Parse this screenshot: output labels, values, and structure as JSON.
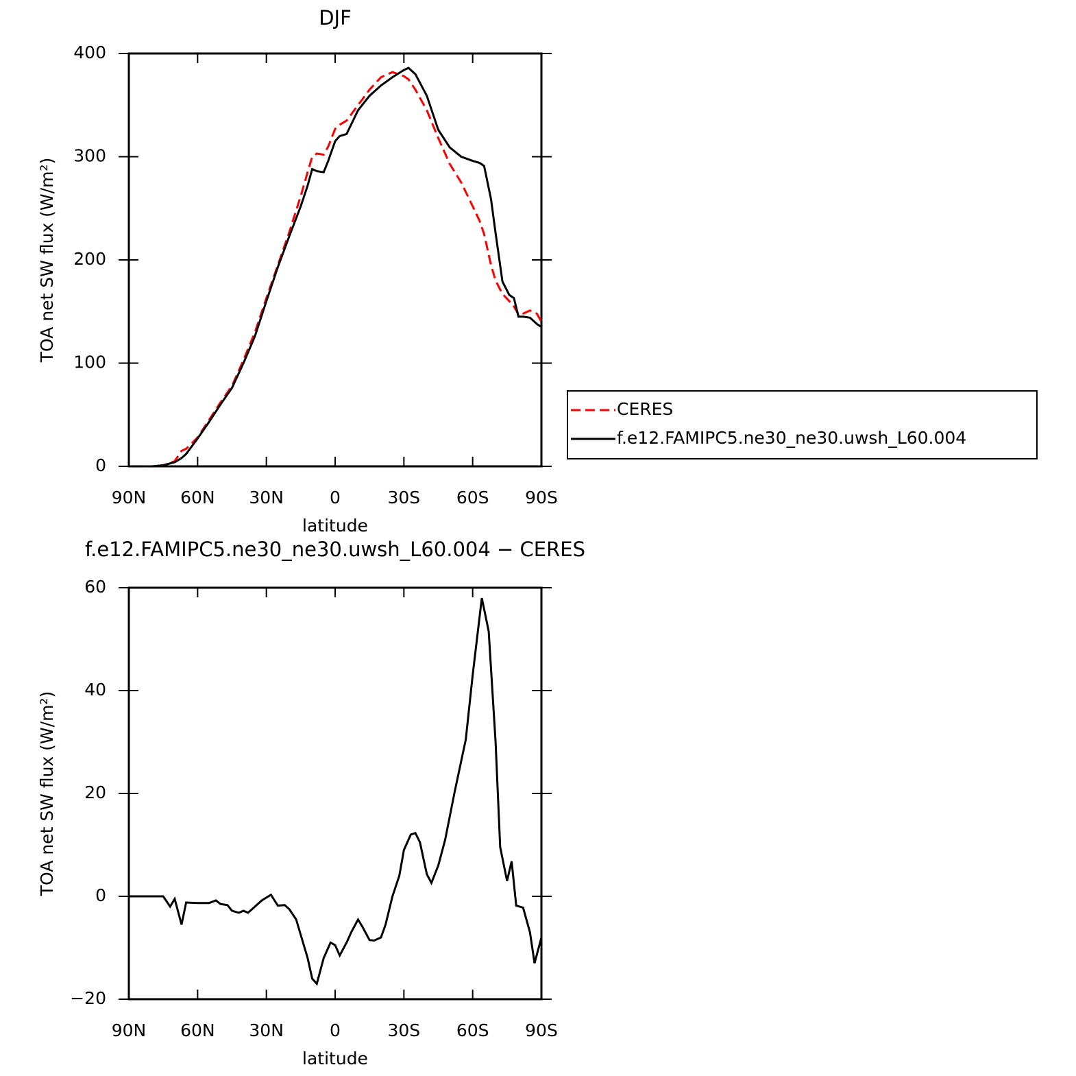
{
  "chart_data": [
    {
      "type": "line",
      "title": "DJF",
      "xlabel": "latitude",
      "ylabel": "TOA net SW flux (W/m²)",
      "x": [
        90,
        80,
        75,
        70,
        67,
        65,
        60,
        55,
        50,
        45,
        40,
        35,
        30,
        25,
        20,
        15,
        12,
        10,
        8,
        5,
        3,
        0,
        -2,
        -5,
        -10,
        -15,
        -20,
        -25,
        -30,
        -32,
        -35,
        -40,
        -45,
        -50,
        -55,
        -60,
        -63,
        -65,
        -68,
        -70,
        -73,
        -76,
        -78,
        -80,
        -82,
        -85,
        -88,
        -90
      ],
      "series": [
        {
          "name": "CERES",
          "color": "#ff0000",
          "line_style": "dashed",
          "values": [
            0,
            0,
            1,
            5,
            15,
            17,
            28,
            45,
            62,
            78,
            103,
            130,
            163,
            195,
            227,
            262,
            285,
            300,
            303,
            302,
            310,
            327,
            331,
            335,
            350,
            365,
            377,
            382,
            378,
            375,
            365,
            345,
            318,
            293,
            275,
            252,
            238,
            225,
            195,
            180,
            167,
            160,
            155,
            147,
            148,
            151,
            148,
            140
          ]
        },
        {
          "name": "f.e12.FAMIPC5.ne30_ne30.uwsh_L60.004",
          "color": "#000000",
          "line_style": "solid",
          "values": [
            0,
            0,
            1,
            4,
            8,
            12,
            27,
            43,
            60,
            76,
            100,
            126,
            160,
            193,
            223,
            252,
            272,
            288,
            286,
            285,
            296,
            315,
            320,
            322,
            345,
            359,
            369,
            377,
            384,
            386,
            380,
            359,
            326,
            309,
            300,
            296,
            294,
            291,
            259,
            226,
            179,
            166,
            163,
            145,
            145,
            144,
            138,
            135
          ]
        }
      ],
      "xlim": [
        90,
        -90
      ],
      "xticks": [
        {
          "value": 90,
          "label": "90N"
        },
        {
          "value": 60,
          "label": "60N"
        },
        {
          "value": 30,
          "label": "30N"
        },
        0,
        {
          "value": -30,
          "label": "30S"
        },
        {
          "value": -60,
          "label": "60S"
        },
        {
          "value": -90,
          "label": "90S"
        }
      ],
      "ylim": [
        0,
        400
      ],
      "yticks": [
        0,
        100,
        200,
        300,
        400
      ],
      "legend": "right"
    },
    {
      "type": "line",
      "title": "f.e12.FAMIPC5.ne30_ne30.uwsh_L60.004 − CERES",
      "xlabel": "latitude",
      "ylabel": "TOA net SW flux (W/m²)",
      "x": [
        90,
        80,
        75,
        72,
        70,
        67,
        65,
        60,
        55,
        52,
        50,
        47,
        45,
        42,
        40,
        38,
        35,
        32,
        28,
        25,
        22,
        20,
        17,
        15,
        12,
        10,
        8,
        5,
        2,
        0,
        -2,
        -5,
        -7,
        -10,
        -12,
        -15,
        -17,
        -20,
        -22,
        -25,
        -28,
        -30,
        -33,
        -35,
        -37,
        -40,
        -42,
        -45,
        -48,
        -52,
        -57,
        -60,
        -64,
        -67,
        -70,
        -72,
        -75,
        -77,
        -79,
        -82,
        -85,
        -87,
        -90
      ],
      "series": [
        {
          "color": "#000000",
          "line_style": "solid",
          "values": [
            0,
            0,
            0,
            -2,
            -0.5,
            -5.5,
            -1.2,
            -1.3,
            -1.3,
            -0.8,
            -1.5,
            -1.7,
            -2.8,
            -3.2,
            -2.8,
            -3.2,
            -2,
            -0.8,
            0.3,
            -1.8,
            -1.7,
            -2.5,
            -4.5,
            -7.5,
            -12,
            -16,
            -17,
            -12,
            -9,
            -9.5,
            -11.5,
            -9,
            -7,
            -4.5,
            -6,
            -8.5,
            -8.6,
            -8,
            -5.5,
            0,
            4,
            9,
            12,
            12.3,
            10.5,
            4.3,
            2.6,
            6,
            11,
            20,
            30.5,
            43,
            58,
            51.5,
            30,
            9.6,
            3,
            6.8,
            -1.8,
            -2.2,
            -7,
            -13,
            -8
          ]
        }
      ],
      "xlim": [
        90,
        -90
      ],
      "xticks": [
        {
          "value": 90,
          "label": "90N"
        },
        {
          "value": 60,
          "label": "60N"
        },
        {
          "value": 30,
          "label": "30N"
        },
        0,
        {
          "value": -30,
          "label": "30S"
        },
        {
          "value": -60,
          "label": "60S"
        },
        {
          "value": -90,
          "label": "90S"
        }
      ],
      "ylim": [
        -20,
        60
      ],
      "yticks": [
        {
          "value": -20,
          "label": "−20"
        },
        0,
        20,
        40,
        60
      ]
    }
  ]
}
